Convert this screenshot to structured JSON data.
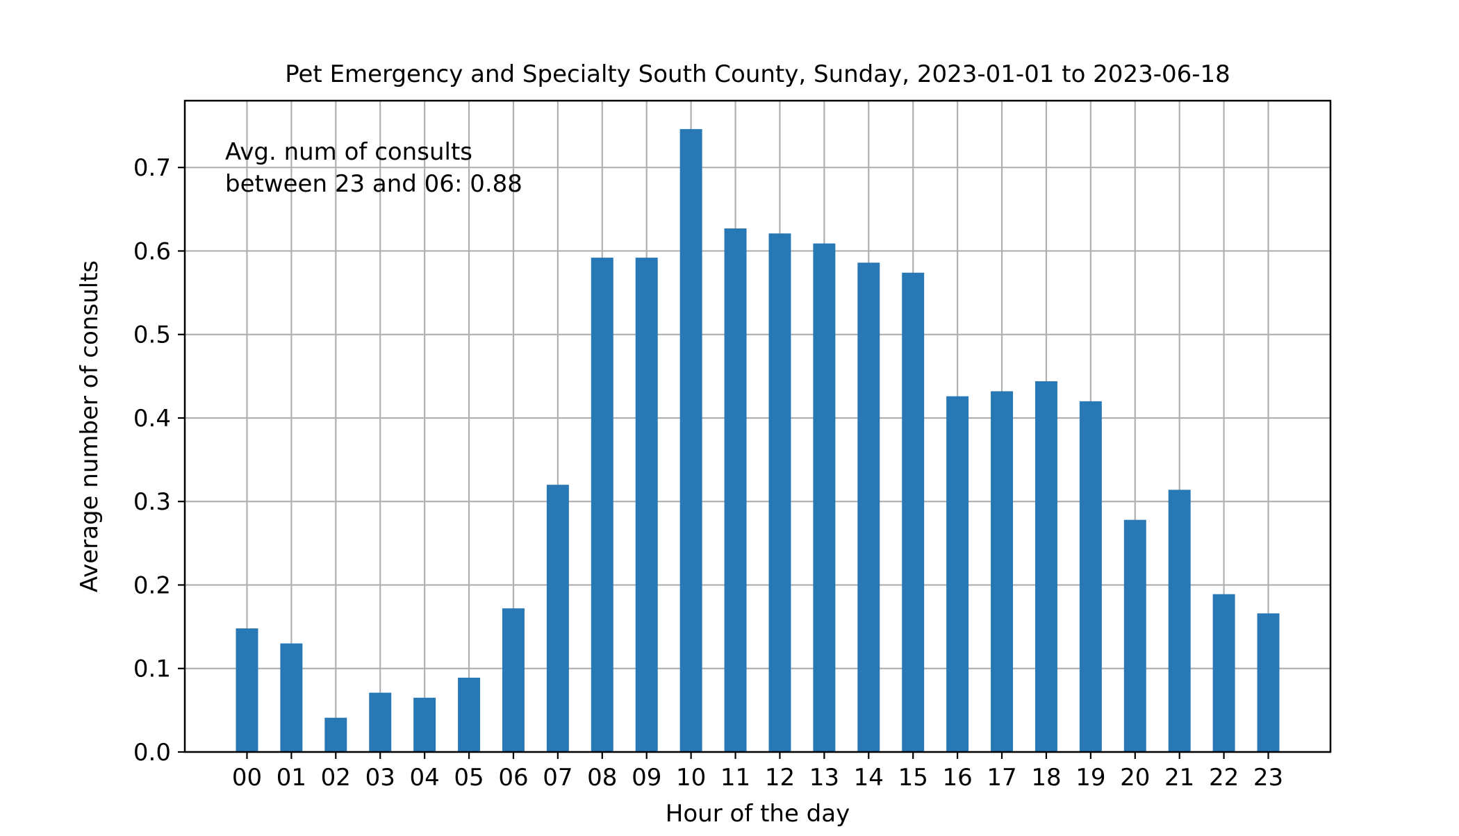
{
  "chart_data": {
    "type": "bar",
    "title": "Pet Emergency and Specialty South County, Sunday, 2023-01-01 to 2023-06-18",
    "xlabel": "Hour of the day",
    "ylabel": "Average number of consults",
    "categories": [
      "00",
      "01",
      "02",
      "03",
      "04",
      "05",
      "06",
      "07",
      "08",
      "09",
      "10",
      "11",
      "12",
      "13",
      "14",
      "15",
      "16",
      "17",
      "18",
      "19",
      "20",
      "21",
      "22",
      "23"
    ],
    "values": [
      0.148,
      0.13,
      0.041,
      0.071,
      0.065,
      0.089,
      0.172,
      0.32,
      0.592,
      0.592,
      0.746,
      0.627,
      0.621,
      0.609,
      0.586,
      0.574,
      0.426,
      0.432,
      0.444,
      0.42,
      0.278,
      0.314,
      0.189,
      0.166
    ],
    "ylim": [
      0,
      0.78
    ],
    "yticks": [
      0.0,
      0.1,
      0.2,
      0.3,
      0.4,
      0.5,
      0.6,
      0.7
    ],
    "ytick_labels": [
      "0.0",
      "0.1",
      "0.2",
      "0.3",
      "0.4",
      "0.5",
      "0.6",
      "0.7"
    ],
    "grid": true,
    "annotation": {
      "lines": [
        "Avg. num of consults",
        "between 23 and 06: 0.88"
      ],
      "placement": "top-left"
    },
    "bar_color": "#2878b5"
  }
}
